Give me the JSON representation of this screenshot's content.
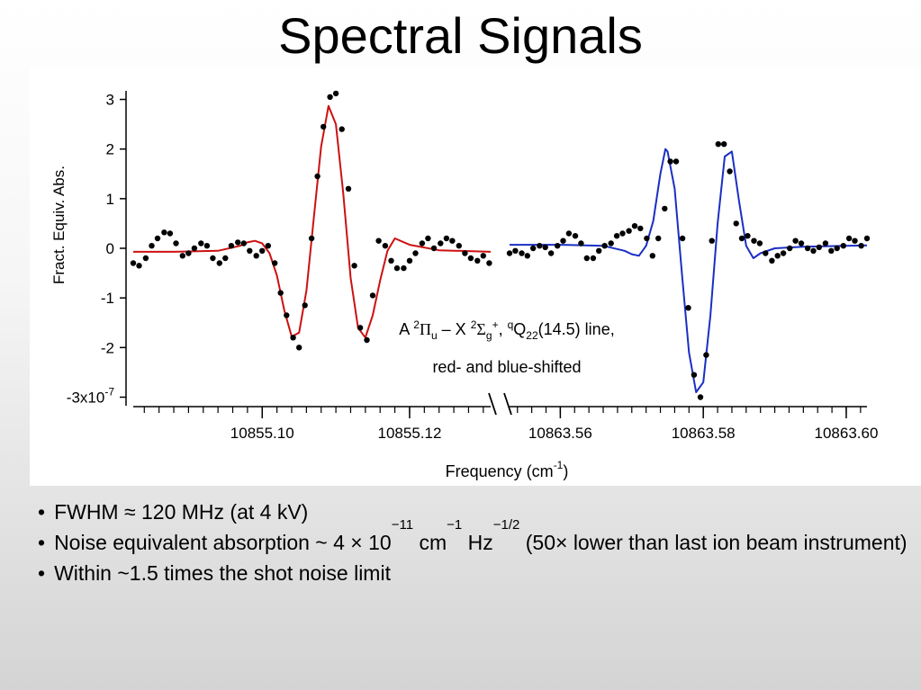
{
  "slide": {
    "title": "Spectral Signals",
    "bullets": [
      {
        "marker": "•",
        "parts": [
          {
            "t": "FWHM ≈ 120 MHz (at 4 kV)"
          }
        ]
      },
      {
        "marker": "•",
        "parts": [
          {
            "t": "Noise equivalent absorption ~ 4 × 10"
          },
          {
            "t": "−11",
            "sup": true
          },
          {
            "t": " cm"
          },
          {
            "t": "−1",
            "sup": true
          },
          {
            "t": " Hz"
          },
          {
            "t": "−1/2",
            "sup": true
          },
          {
            "t": " (50× lower than last ion beam instrument)"
          }
        ]
      },
      {
        "marker": "•",
        "parts": [
          {
            "t": "Within ~1.5 times the shot noise limit"
          }
        ]
      }
    ]
  },
  "chart_data": {
    "type": "line",
    "title": "",
    "xlabel": "Frequency (cm",
    "xlabel_sup": "-1",
    "xlabel_close": ")",
    "ylabel": "Fract. Equiv. Abs.",
    "ylim": [
      -3.1,
      3.1
    ],
    "y_ticks": [
      3,
      2,
      1,
      0,
      -1,
      -2,
      -3
    ],
    "y_tick_labels": [
      "3",
      "2",
      "1",
      "0",
      "-1",
      "-2",
      "-3x10"
    ],
    "y_tick_exp": "-7",
    "broken_x_axis": true,
    "annotation": {
      "line1": {
        "pre": "A ",
        "s1": "2",
        "g1": "Π",
        "sub1": "u",
        "mid": " – X ",
        "s2": "2",
        "g2": "Σ",
        "sub2": "g",
        "sup3": "+",
        "mid2": ", ",
        "s4": "q",
        "q": "Q",
        "sub4": "22",
        "post": "(14.5) line,"
      },
      "line2": "red- and blue-shifted"
    },
    "segments": [
      {
        "name": "",
        "xlim": [
          10855.0825,
          10855.131
        ],
        "ticks": [
          10855.1,
          10855.12
        ],
        "tick_labels": [
          "10855.10",
          "10855.12"
        ],
        "color": "#cc1111",
        "fit": {
          "x": [
            10855.0825,
            10855.088,
            10855.094,
            10855.097,
            10855.098,
            10855.099,
            10855.1,
            10855.101,
            10855.102,
            10855.103,
            10855.104,
            10855.105,
            10855.106,
            10855.107,
            10855.108,
            10855.109,
            10855.11,
            10855.111,
            10855.112,
            10855.113,
            10855.114,
            10855.115,
            10855.116,
            10855.117,
            10855.118,
            10855.12,
            10855.124,
            10855.131
          ],
          "y": [
            -0.07,
            -0.07,
            -0.05,
            0.05,
            0.12,
            0.15,
            0.1,
            -0.1,
            -0.55,
            -1.25,
            -1.78,
            -1.7,
            -0.85,
            0.6,
            2.05,
            2.87,
            2.5,
            1.1,
            -0.6,
            -1.6,
            -1.8,
            -1.35,
            -0.65,
            -0.05,
            0.2,
            0.07,
            -0.04,
            -0.07
          ]
        },
        "points": {
          "x": [
            10855.0825,
            10855.0833,
            10855.0842,
            10855.085,
            10855.0858,
            10855.0867,
            10855.0875,
            10855.0883,
            10855.0892,
            10855.09,
            10855.0908,
            10855.0917,
            10855.0925,
            10855.0933,
            10855.0942,
            10855.095,
            10855.0958,
            10855.0967,
            10855.0975,
            10855.0983,
            10855.0992,
            10855.1,
            10855.1008,
            10855.1017,
            10855.1025,
            10855.1033,
            10855.1042,
            10855.105,
            10855.1058,
            10855.1067,
            10855.1075,
            10855.1083,
            10855.1092,
            10855.11,
            10855.1108,
            10855.1117,
            10855.1125,
            10855.1133,
            10855.1142,
            10855.115,
            10855.1158,
            10855.1167,
            10855.1175,
            10855.1183,
            10855.1192,
            10855.12,
            10855.1208,
            10855.1217,
            10855.1225,
            10855.1233,
            10855.1242,
            10855.125,
            10855.1258,
            10855.1267,
            10855.1275,
            10855.1283,
            10855.1292,
            10855.13,
            10855.1308
          ],
          "y": [
            -0.3,
            -0.35,
            -0.2,
            0.05,
            0.2,
            0.32,
            0.3,
            0.1,
            -0.15,
            -0.1,
            0.0,
            0.1,
            0.05,
            -0.2,
            -0.3,
            -0.2,
            0.05,
            0.12,
            0.1,
            -0.05,
            -0.15,
            -0.05,
            0.05,
            -0.3,
            -0.9,
            -1.35,
            -1.8,
            -2.0,
            -1.15,
            0.2,
            1.45,
            2.45,
            3.05,
            3.12,
            2.4,
            1.2,
            -0.35,
            -1.6,
            -1.85,
            -0.95,
            0.15,
            0.05,
            -0.25,
            -0.4,
            -0.4,
            -0.25,
            -0.1,
            0.1,
            0.2,
            0.0,
            0.1,
            0.2,
            0.15,
            0.05,
            -0.1,
            -0.2,
            -0.25,
            -0.15,
            -0.3
          ]
        }
      },
      {
        "name": "",
        "xlim": [
          10863.5529,
          10863.6029
        ],
        "ticks": [
          10863.56,
          10863.58,
          10863.6
        ],
        "tick_labels": [
          "10863.56",
          "10863.58",
          "10863.60"
        ],
        "color": "#1a2fc4",
        "fit": {
          "x": [
            10863.5529,
            10863.56,
            10863.566,
            10863.569,
            10863.57,
            10863.571,
            10863.572,
            10863.573,
            10863.574,
            10863.5747,
            10863.575,
            10863.576,
            10863.577,
            10863.578,
            10863.579,
            10863.58,
            10863.581,
            10863.582,
            10863.583,
            10863.584,
            10863.585,
            10863.586,
            10863.587,
            10863.588,
            10863.59,
            10863.594,
            10863.6029
          ],
          "y": [
            0.07,
            0.07,
            0.05,
            -0.05,
            -0.12,
            -0.15,
            0.05,
            0.55,
            1.5,
            2.0,
            1.95,
            1.2,
            -0.5,
            -2.1,
            -2.9,
            -2.7,
            -1.35,
            0.5,
            1.85,
            1.95,
            0.95,
            0.05,
            -0.2,
            -0.1,
            0.0,
            0.03,
            0.06
          ]
        },
        "points": {
          "x": [
            10863.5529,
            10863.5537,
            10863.5546,
            10863.5554,
            10863.5562,
            10863.5571,
            10863.5579,
            10863.5587,
            10863.5596,
            10863.5604,
            10863.5612,
            10863.5621,
            10863.5629,
            10863.5637,
            10863.5646,
            10863.5654,
            10863.5662,
            10863.5671,
            10863.5679,
            10863.5687,
            10863.5696,
            10863.5704,
            10863.5712,
            10863.5721,
            10863.5729,
            10863.5737,
            10863.5746,
            10863.5754,
            10863.5762,
            10863.5771,
            10863.5779,
            10863.5787,
            10863.5796,
            10863.5804,
            10863.5812,
            10863.5821,
            10863.5829,
            10863.5837,
            10863.5846,
            10863.5854,
            10863.5862,
            10863.5871,
            10863.5879,
            10863.5887,
            10863.5896,
            10863.5904,
            10863.5912,
            10863.5921,
            10863.5929,
            10863.5937,
            10863.5946,
            10863.5954,
            10863.5962,
            10863.5971,
            10863.5979,
            10863.5987,
            10863.5996,
            10863.6004,
            10863.6012,
            10863.6021,
            10863.6029
          ],
          "y": [
            -0.1,
            -0.05,
            -0.1,
            -0.15,
            0.0,
            0.05,
            0.02,
            -0.1,
            0.05,
            0.15,
            0.3,
            0.25,
            0.1,
            -0.2,
            -0.2,
            -0.05,
            0.05,
            0.1,
            0.25,
            0.3,
            0.35,
            0.45,
            0.4,
            0.2,
            -0.15,
            0.2,
            0.8,
            1.75,
            1.75,
            0.2,
            -1.2,
            -2.55,
            -3.0,
            -2.15,
            0.15,
            2.1,
            2.1,
            1.55,
            0.5,
            0.2,
            0.25,
            0.15,
            0.1,
            -0.1,
            -0.25,
            -0.15,
            -0.1,
            0.0,
            0.15,
            0.1,
            0.0,
            -0.05,
            0.02,
            0.1,
            -0.05,
            0.0,
            0.05,
            0.2,
            0.15,
            0.05,
            0.2
          ]
        }
      }
    ]
  }
}
